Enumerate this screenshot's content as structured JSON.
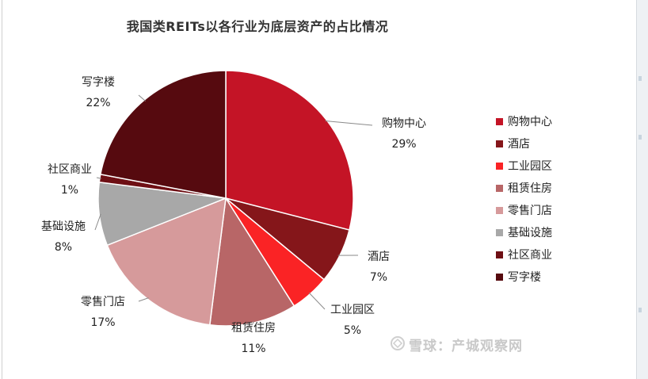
{
  "chart_data": {
    "type": "pie",
    "title": "我国类REITs以各行业为底层资产的占比情况",
    "categories": [
      "购物中心",
      "酒店",
      "工业园区",
      "租赁住房",
      "零售门店",
      "基础设施",
      "社区商业",
      "写字楼"
    ],
    "values": [
      29,
      7,
      5,
      11,
      17,
      8,
      1,
      22
    ],
    "value_labels": [
      "29%",
      "7%",
      "5%",
      "11%",
      "17%",
      "8%",
      "1%",
      "22%"
    ],
    "colors": [
      "#c41426",
      "#85161a",
      "#fa2325",
      "#b86667",
      "#d69a9b",
      "#a8a8a8",
      "#6e0f14",
      "#560a0f"
    ],
    "legend_position": "right"
  },
  "watermark": "雪球：产城观察网",
  "watermark_icon": "snowball-logo-icon"
}
